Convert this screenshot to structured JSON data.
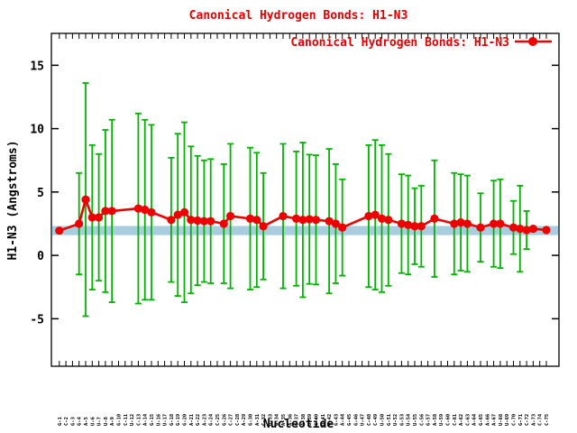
{
  "title": {
    "text": "Canonical Hydrogen Bonds: H1-N3",
    "color": "#e60000"
  },
  "legend": {
    "label": "Canonical Hydrogen Bonds: H1-N3",
    "color": "#e60000",
    "position": "top-right-inside"
  },
  "axes": {
    "y_label": "H1-N3 (Angstroms)",
    "x_label": "Nucleotide",
    "y_tick_values": [
      -5,
      0,
      5,
      10,
      15
    ]
  },
  "colors": {
    "series": "#ef0000",
    "error_bars": "#00b400",
    "reference_band": "#a8cdde",
    "axis": "#000000",
    "background": "#ffffff"
  },
  "chart_data": {
    "type": "line",
    "title": "Canonical Hydrogen Bonds: H1-N3",
    "xlabel": "Nucleotide",
    "ylabel": "H1-N3 (Angstroms)",
    "ylim": [
      -8.75,
      17.5
    ],
    "grid": false,
    "legend_position": "top-right-inside",
    "x_tick_count": 75,
    "x_tick_labels": [
      "G-1",
      "C-2",
      "G-3",
      "G-4",
      "A-5",
      "U-6",
      "U-7",
      "U-8",
      "A-9",
      "G-10",
      "C-11",
      "U-12",
      "C-13",
      "A-14",
      "G-15",
      "U-16",
      "U-17",
      "G-18",
      "G-19",
      "G-20",
      "A-21",
      "G-22",
      "A-23",
      "G-24",
      "C-25",
      "G-26",
      "C-27",
      "C-28",
      "A-29",
      "G-30",
      "A-31",
      "C-32",
      "U-33",
      "G-34",
      "A-35",
      "A-36",
      "G-37",
      "A-38",
      "U-39",
      "C-40",
      "U-41",
      "G-42",
      "G-43",
      "A-44",
      "G-45",
      "G-46",
      "U-47",
      "C-48",
      "C-49",
      "U-50",
      "G-51",
      "U-52",
      "G-53",
      "U-54",
      "U-55",
      "C-56",
      "G-57",
      "A-58",
      "U-59",
      "C-60",
      "C-61",
      "A-62",
      "C-63",
      "A-64",
      "G-65",
      "A-66",
      "A-67",
      "U-68",
      "U-69",
      "C-70",
      "G-71",
      "C-72",
      "A-73",
      "C-74",
      "C-75"
    ],
    "reference_band": {
      "y_low": 1.6,
      "y_high": 2.32
    },
    "series": [
      {
        "name": "Canonical Hydrogen Bonds: H1-N3",
        "marker": "filled-circle",
        "points_format": "[x_index, mean_angstroms, stddev_angstroms]",
        "points": [
          [
            1,
            1.95,
            0
          ],
          [
            4,
            2.5,
            4.0
          ],
          [
            5,
            4.4,
            9.2
          ],
          [
            6,
            3.0,
            5.7
          ],
          [
            7,
            3.0,
            5.0
          ],
          [
            8,
            3.5,
            6.4
          ],
          [
            9,
            3.5,
            7.2
          ],
          [
            13,
            3.7,
            7.5
          ],
          [
            14,
            3.6,
            7.1
          ],
          [
            15,
            3.4,
            6.9
          ],
          [
            18,
            2.8,
            4.9
          ],
          [
            19,
            3.2,
            6.4
          ],
          [
            20,
            3.4,
            7.1
          ],
          [
            21,
            2.8,
            5.8
          ],
          [
            22,
            2.75,
            5.1
          ],
          [
            23,
            2.7,
            4.8
          ],
          [
            24,
            2.7,
            4.9
          ],
          [
            26,
            2.5,
            4.7
          ],
          [
            27,
            3.1,
            5.7
          ],
          [
            30,
            2.9,
            5.6
          ],
          [
            31,
            2.8,
            5.3
          ],
          [
            32,
            2.3,
            4.2
          ],
          [
            35,
            3.1,
            5.7
          ],
          [
            37,
            2.9,
            5.3
          ],
          [
            38,
            2.8,
            6.1
          ],
          [
            39,
            2.85,
            5.1
          ],
          [
            40,
            2.8,
            5.1
          ],
          [
            42,
            2.7,
            5.7
          ],
          [
            43,
            2.5,
            4.7
          ],
          [
            44,
            2.2,
            3.8
          ],
          [
            48,
            3.1,
            5.6
          ],
          [
            49,
            3.2,
            5.9
          ],
          [
            50,
            2.9,
            5.8
          ],
          [
            51,
            2.8,
            5.2
          ],
          [
            53,
            2.5,
            3.9
          ],
          [
            54,
            2.4,
            3.9
          ],
          [
            55,
            2.3,
            3.0
          ],
          [
            56,
            2.3,
            3.2
          ],
          [
            58,
            2.9,
            4.6
          ],
          [
            61,
            2.5,
            4.0
          ],
          [
            62,
            2.6,
            3.8
          ],
          [
            63,
            2.5,
            3.8
          ],
          [
            65,
            2.2,
            2.7
          ],
          [
            67,
            2.5,
            3.4
          ],
          [
            68,
            2.5,
            3.5
          ],
          [
            70,
            2.2,
            2.1
          ],
          [
            71,
            2.1,
            3.4
          ],
          [
            72,
            2.0,
            1.5
          ],
          [
            73,
            2.1,
            0
          ],
          [
            75,
            2.0,
            0
          ]
        ]
      }
    ]
  }
}
